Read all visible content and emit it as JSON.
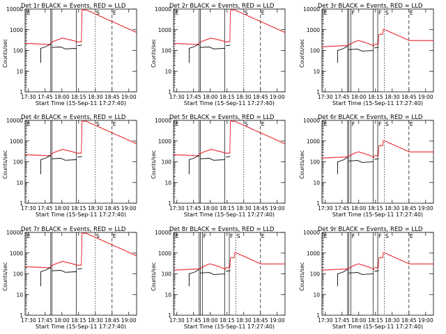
{
  "colors": {
    "events": "#000000",
    "lld": "#e8141c",
    "axis": "#000000",
    "background": "#ffffff"
  },
  "chart_data": [
    {
      "type": "line",
      "title": "Det 1r BLACK = Events, RED = LLD",
      "xlabel": "Start Time (15-Sep-11 17:27:40)",
      "ylabel": "Counts/sec",
      "yscale": "log",
      "ylim": [
        1,
        10000
      ],
      "xlim": [
        "17:27",
        "19:07"
      ],
      "xticks": [
        "17:30",
        "17:45",
        "18:00",
        "18:15",
        "18:30",
        "18:45",
        "19:00"
      ],
      "yticks": [
        "1",
        "10",
        "100",
        "1000",
        "10000"
      ],
      "markers": [
        {
          "label": "E",
          "time": "17:28"
        },
        {
          "label": "S",
          "time": "18:30"
        },
        {
          "label": "E",
          "time": "18:45"
        }
      ],
      "grid": false
    },
    {
      "type": "line",
      "title": "Det 2r BLACK = Events, RED = LLD",
      "xlabel": "Start Time (15-Sep-11 17:27:40)",
      "ylabel": "Counts/sec",
      "yscale": "log",
      "ylim": [
        1,
        10000
      ],
      "xlim": [
        "17:27",
        "19:07"
      ],
      "xticks": [
        "17:30",
        "17:45",
        "18:00",
        "18:15",
        "18:30",
        "18:45",
        "19:00"
      ],
      "yticks": [
        "1",
        "10",
        "100",
        "1000",
        "10000"
      ],
      "markers": [
        {
          "label": "E",
          "time": "17:28"
        },
        {
          "label": "S",
          "time": "18:30"
        },
        {
          "label": "E",
          "time": "18:45"
        }
      ],
      "grid": false
    },
    {
      "type": "line",
      "title": "Det 3r BLACK = Events, RED = LLD",
      "xlabel": "Start Time (15-Sep-11 17:27:40)",
      "ylabel": "Counts/sec",
      "yscale": "log",
      "ylim": [
        1,
        10000
      ],
      "xlim": [
        "17:27",
        "19:07"
      ],
      "xticks": [
        "17:30",
        "17:45",
        "18:00",
        "18:15",
        "18:30",
        "18:45",
        "19:00"
      ],
      "yticks": [
        "1",
        "10",
        "100",
        "1000",
        "10000"
      ],
      "markers": [
        {
          "label": "E",
          "time": "17:28"
        },
        {
          "label": "F",
          "time": "17:53"
        },
        {
          "label": "F",
          "time": "18:17"
        },
        {
          "label": "S",
          "time": "18:23"
        },
        {
          "label": "E",
          "time": "18:45"
        }
      ],
      "grid": false
    },
    {
      "type": "line",
      "title": "Det 4r BLACK = Events, RED = LLD",
      "xlabel": "Start Time (15-Sep-11 17:27:40)",
      "ylabel": "Counts/sec",
      "yscale": "log",
      "ylim": [
        1,
        10000
      ],
      "xlim": [
        "17:27",
        "19:07"
      ],
      "xticks": [
        "17:30",
        "17:45",
        "18:00",
        "18:15",
        "18:30",
        "18:45",
        "19:00"
      ],
      "yticks": [
        "1",
        "10",
        "100",
        "1000",
        "10000"
      ],
      "markers": [
        {
          "label": "E",
          "time": "17:28"
        },
        {
          "label": "S",
          "time": "18:30"
        },
        {
          "label": "E",
          "time": "18:45"
        }
      ],
      "grid": false
    },
    {
      "type": "line",
      "title": "Det 5r BLACK = Events, RED = LLD",
      "xlabel": "Start Time (15-Sep-11 17:27:40)",
      "ylabel": "Counts/sec",
      "yscale": "log",
      "ylim": [
        1,
        10000
      ],
      "xlim": [
        "17:27",
        "19:07"
      ],
      "xticks": [
        "17:30",
        "17:45",
        "18:00",
        "18:15",
        "18:30",
        "18:45",
        "19:00"
      ],
      "yticks": [
        "1",
        "10",
        "100",
        "1000",
        "10000"
      ],
      "markers": [
        {
          "label": "E",
          "time": "17:28"
        },
        {
          "label": "S",
          "time": "18:30"
        },
        {
          "label": "E",
          "time": "18:45"
        }
      ],
      "grid": false
    },
    {
      "type": "line",
      "title": "Det 6r BLACK = Events, RED = LLD",
      "xlabel": "Start Time (15-Sep-11 17:27:40)",
      "ylabel": "Counts/sec",
      "yscale": "log",
      "ylim": [
        1,
        10000
      ],
      "xlim": [
        "17:27",
        "19:07"
      ],
      "xticks": [
        "17:30",
        "17:45",
        "18:00",
        "18:15",
        "18:30",
        "18:45",
        "19:00"
      ],
      "yticks": [
        "1",
        "10",
        "100",
        "1000",
        "10000"
      ],
      "markers": [
        {
          "label": "E",
          "time": "17:28"
        },
        {
          "label": "F",
          "time": "17:53"
        },
        {
          "label": "F",
          "time": "18:17"
        },
        {
          "label": "S",
          "time": "18:23"
        },
        {
          "label": "E",
          "time": "18:45"
        }
      ],
      "grid": false
    },
    {
      "type": "line",
      "title": "Det 7r BLACK = Events, RED = LLD",
      "xlabel": "Start Time (15-Sep-11 17:27:40)",
      "ylabel": "Counts/sec",
      "yscale": "log",
      "ylim": [
        1,
        10000
      ],
      "xlim": [
        "17:27",
        "19:07"
      ],
      "xticks": [
        "17:30",
        "17:45",
        "18:00",
        "18:15",
        "18:30",
        "18:45",
        "19:00"
      ],
      "yticks": [
        "1",
        "10",
        "100",
        "1000",
        "10000"
      ],
      "markers": [
        {
          "label": "E",
          "time": "17:28"
        },
        {
          "label": "S",
          "time": "18:30"
        },
        {
          "label": "E",
          "time": "18:45"
        }
      ],
      "grid": false
    },
    {
      "type": "line",
      "title": "Det 8r BLACK = Events, RED = LLD",
      "xlabel": "Start Time (15-Sep-11 17:27:40)",
      "ylabel": "Counts/sec",
      "yscale": "log",
      "ylim": [
        1,
        10000
      ],
      "xlim": [
        "17:27",
        "19:07"
      ],
      "xticks": [
        "17:30",
        "17:45",
        "18:00",
        "18:15",
        "18:30",
        "18:45",
        "19:00"
      ],
      "yticks": [
        "1",
        "10",
        "100",
        "1000",
        "10000"
      ],
      "markers": [
        {
          "label": "E",
          "time": "17:28"
        },
        {
          "label": "F",
          "time": "17:53"
        },
        {
          "label": "F",
          "time": "18:17"
        },
        {
          "label": "S",
          "time": "18:23"
        },
        {
          "label": "E",
          "time": "18:45"
        }
      ],
      "grid": false
    },
    {
      "type": "line",
      "title": "Det 9r BLACK = Events, RED = LLD",
      "xlabel": "Start Time (15-Sep-11 17:27:40)",
      "ylabel": "Counts/sec",
      "yscale": "log",
      "ylim": [
        1,
        10000
      ],
      "xlim": [
        "17:27",
        "19:07"
      ],
      "xticks": [
        "17:30",
        "17:45",
        "18:00",
        "18:15",
        "18:30",
        "18:45",
        "19:00"
      ],
      "yticks": [
        "1",
        "10",
        "100",
        "1000",
        "10000"
      ],
      "markers": [
        {
          "label": "E",
          "time": "17:28"
        },
        {
          "label": "F",
          "time": "17:53"
        },
        {
          "label": "F",
          "time": "18:17"
        },
        {
          "label": "S",
          "time": "18:23"
        },
        {
          "label": "E",
          "time": "18:45"
        }
      ],
      "grid": false
    }
  ]
}
